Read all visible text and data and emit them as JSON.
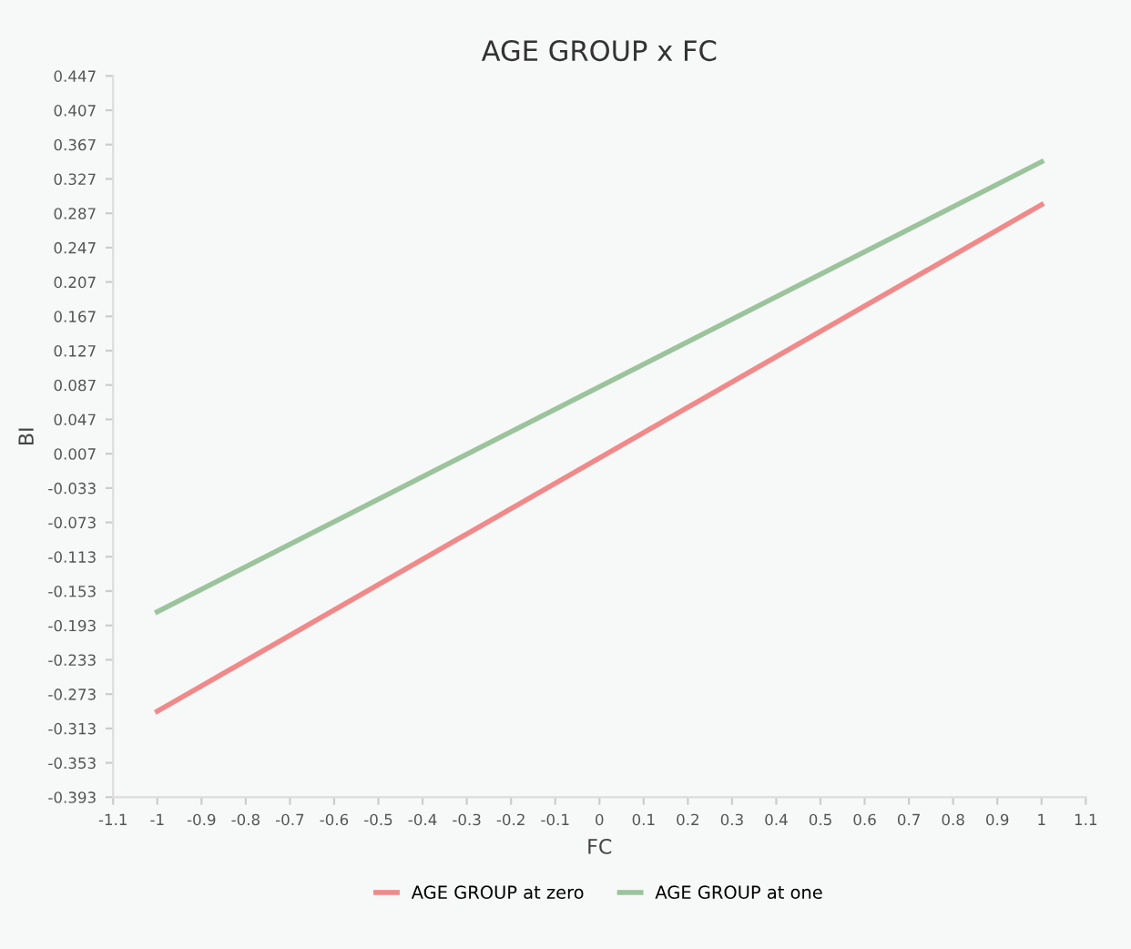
{
  "chart_data": {
    "type": "line",
    "title": "AGE GROUP x FC",
    "xlabel": "FC",
    "ylabel": "BI",
    "series": [
      {
        "name": "AGE GROUP at zero",
        "color": "#f08a8a",
        "values": [
          -0.293,
          0.297
        ]
      },
      {
        "name": "AGE GROUP at one",
        "color": "#9cc49c",
        "values": [
          -0.177,
          0.347
        ]
      }
    ],
    "x": [
      -1,
      1
    ],
    "xlim": [
      -1.1,
      1.1
    ],
    "xticks": [
      -1.1,
      -1,
      -0.9,
      -0.8,
      -0.7,
      -0.6,
      -0.5,
      -0.4,
      -0.3,
      -0.2,
      -0.1,
      0,
      0.1,
      0.2,
      0.3,
      0.4,
      0.5,
      0.6,
      0.7,
      0.8,
      0.9,
      1,
      1.1
    ],
    "ylim": [
      -0.393,
      0.447
    ],
    "yticks": [
      -0.393,
      -0.353,
      -0.313,
      -0.273,
      -0.233,
      -0.193,
      -0.153,
      -0.113,
      -0.073,
      -0.033,
      0.007,
      0.047,
      0.087,
      0.127,
      0.167,
      0.207,
      0.247,
      0.287,
      0.327,
      0.367,
      0.407,
      0.447
    ],
    "legend": "bottom",
    "marker": "none",
    "line_style": "solid"
  }
}
